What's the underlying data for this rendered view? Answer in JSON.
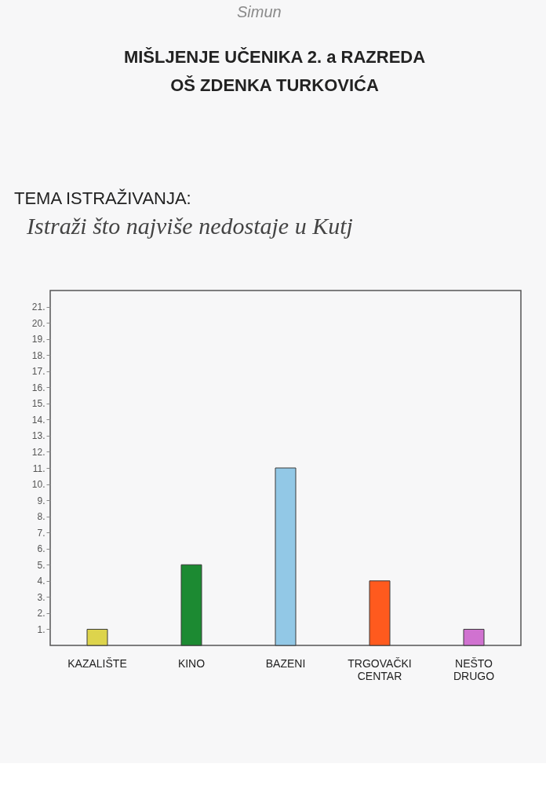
{
  "chart_data": {
    "type": "bar",
    "title": "MIŠLJENJE UČENIKA 2. a RAZREDA",
    "subtitle": "OŠ ZDENKA TURKOVIĆA",
    "annotations": [
      "Simun",
      "TEMA ISTRAŽIVANJA:",
      "Istraži što najviše nedostaje u Kutj"
    ],
    "categories": [
      "KAZALIŠTE",
      "KINO",
      "BAZENI",
      "TRGOVAČKI CENTAR",
      "NEŠTO DRUGO"
    ],
    "values": [
      1,
      5,
      11,
      4,
      1
    ],
    "colors": [
      "#ddd44c",
      "#1c8a32",
      "#92c8e6",
      "#ff5a1e",
      "#d072d0"
    ],
    "ylim": [
      0,
      22
    ],
    "yticks": [
      {
        "value": 1,
        "label": "1."
      },
      {
        "value": 2,
        "label": "2."
      },
      {
        "value": 3,
        "label": "3."
      },
      {
        "value": 4,
        "label": "4."
      },
      {
        "value": 5,
        "label": "5."
      },
      {
        "value": 6,
        "label": "6."
      },
      {
        "value": 7,
        "label": "7."
      },
      {
        "value": 8,
        "label": "8."
      },
      {
        "value": 9,
        "label": "9."
      },
      {
        "value": 10,
        "label": "10."
      },
      {
        "value": 11,
        "label": "11."
      },
      {
        "value": 12,
        "label": "12."
      },
      {
        "value": 13,
        "label": "13."
      },
      {
        "value": 14,
        "label": "14."
      },
      {
        "value": 15,
        "label": "15."
      },
      {
        "value": 16,
        "label": "16."
      },
      {
        "value": 17,
        "label": "17."
      },
      {
        "value": 18,
        "label": "18."
      },
      {
        "value": 19,
        "label": "19."
      },
      {
        "value": 20,
        "label": "20."
      },
      {
        "value": 21,
        "label": "21."
      }
    ],
    "grid": false
  }
}
